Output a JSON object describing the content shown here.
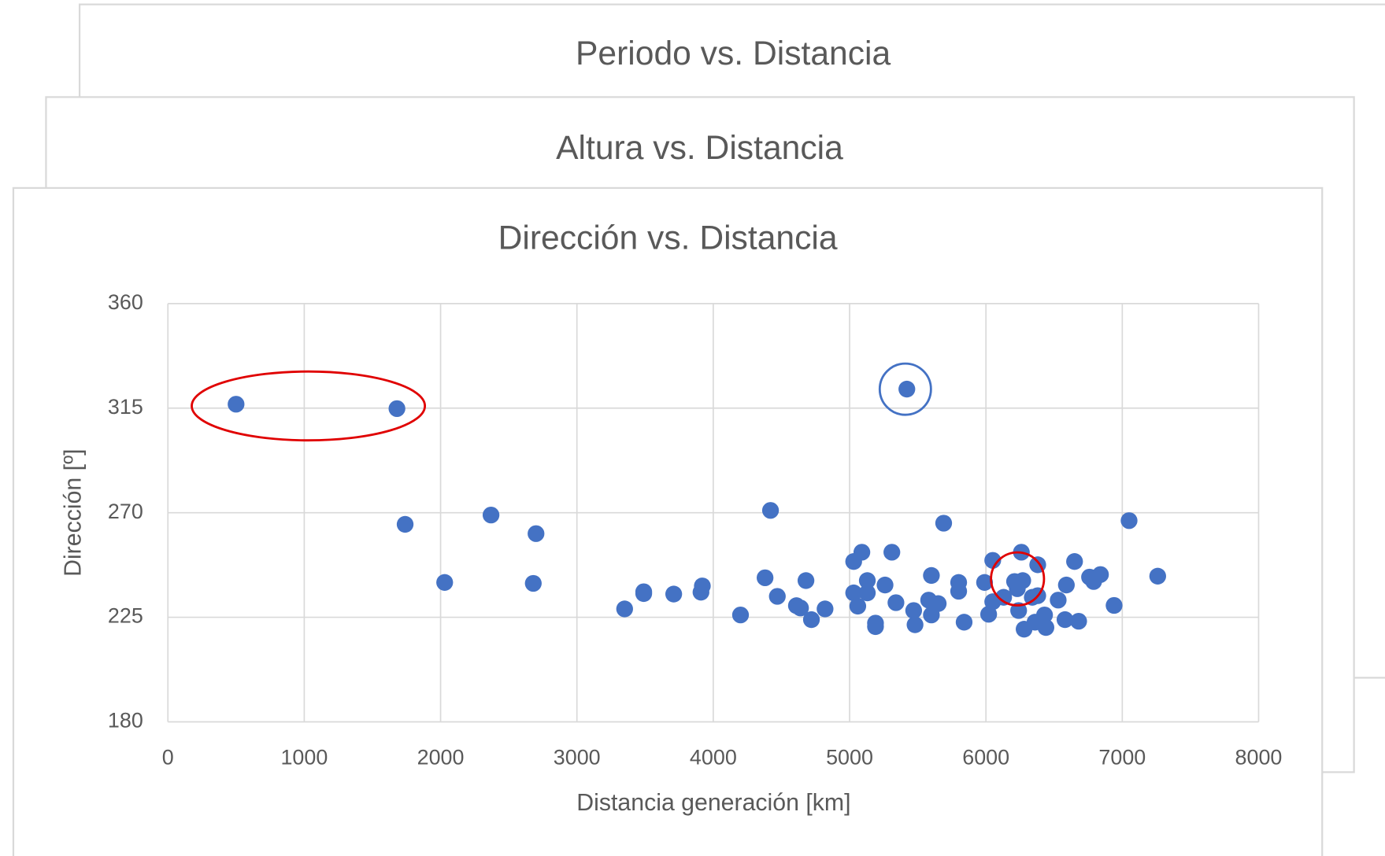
{
  "background_cards": [
    {
      "title": "Periodo vs. Distancia"
    },
    {
      "title": "Altura vs. Distancia"
    }
  ],
  "chart_data": {
    "type": "scatter",
    "title": "Dirección vs. Distancia",
    "x_label": "Distancia generación [km]",
    "y_label": "Dirección [º]",
    "xlim": [
      0,
      8000
    ],
    "xticks": [
      0,
      1000,
      2000,
      3000,
      4000,
      5000,
      6000,
      7000,
      8000
    ],
    "ylim": [
      180,
      360
    ],
    "yticks": [
      180,
      225,
      270,
      315,
      360
    ],
    "grid": true,
    "series": [
      {
        "name": "Dirección",
        "color": "#4472c4",
        "x": [
          500,
          1680,
          1740,
          2370,
          2700,
          2030,
          2680,
          3350,
          3490,
          3490,
          3710,
          3920,
          3910,
          4200,
          4380,
          4420,
          4470,
          4610,
          4680,
          4640,
          4720,
          4820,
          5030,
          5090,
          5030,
          5060,
          5130,
          5130,
          5190,
          5190,
          5260,
          5310,
          5340,
          5420,
          5470,
          5480,
          5600,
          5600,
          5580,
          5650,
          5690,
          5800,
          5800,
          5840,
          5990,
          6020,
          6050,
          6050,
          6130,
          6210,
          6260,
          6230,
          6270,
          6240,
          6280,
          6340,
          6380,
          6380,
          6360,
          6430,
          6440,
          6530,
          6580,
          6590,
          6650,
          6680,
          6760,
          6790,
          6840,
          6940,
          7050,
          7260
        ],
        "values": [
          316.7,
          314.8,
          265,
          269,
          261,
          240,
          239.6,
          228.6,
          236,
          235.2,
          235,
          238.5,
          235.8,
          226,
          242,
          271,
          234,
          230,
          240.8,
          229,
          224,
          228.6,
          249,
          253,
          235.5,
          229.8,
          240.8,
          235.5,
          222.5,
          221,
          238.9,
          253,
          231.3,
          323.2,
          227.9,
          221.8,
          243,
          226,
          232.4,
          230.9,
          265.5,
          240,
          236.2,
          222.9,
          240,
          226.3,
          249.5,
          231.7,
          233.6,
          240.4,
          253,
          237.3,
          240.8,
          227.9,
          219.9,
          233.6,
          247.6,
          234.3,
          222.9,
          226,
          220.6,
          232.4,
          224,
          238.9,
          249,
          223.3,
          242.3,
          240.4,
          243.4,
          230.1,
          266.6,
          242.7
        ]
      }
    ]
  }
}
